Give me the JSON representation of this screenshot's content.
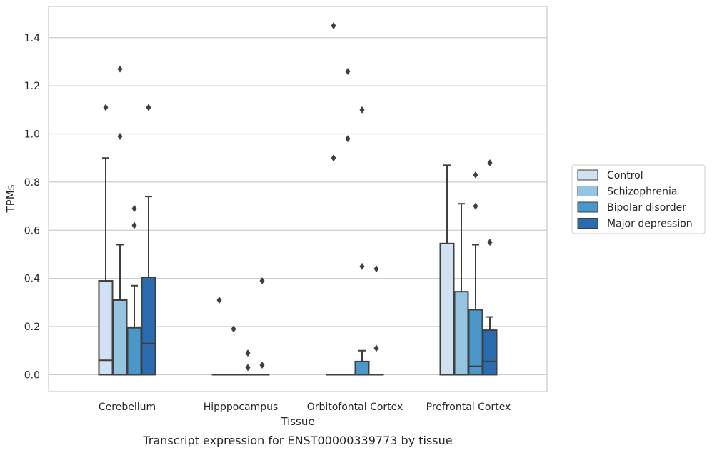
{
  "chart_data": {
    "type": "box",
    "categories": [
      "Cerebellum",
      "Hipppocampus",
      "Orbitofontal Cortex",
      "Prefrontal Cortex"
    ],
    "xlabel": "Tissue",
    "ylabel": "TPMs",
    "caption": "Transcript expression for ENST00000339773 by tissue",
    "ylim": [
      -0.07,
      1.53
    ],
    "yticks": [
      0.0,
      0.2,
      0.4,
      0.6,
      0.8,
      1.0,
      1.2,
      1.4
    ],
    "ytick_labels": [
      "0.0",
      "0.2",
      "0.4",
      "0.6",
      "0.8",
      "1.0",
      "1.2",
      "1.4"
    ],
    "grid": "horizontal",
    "legend_position": "right",
    "series": [
      {
        "name": "Control",
        "color": "#d0e1f2",
        "boxes": [
          {
            "min": 0.0,
            "q1": 0.0,
            "median": 0.06,
            "q3": 0.39,
            "max": 0.9,
            "outliers": [
              1.11
            ]
          },
          {
            "min": 0.0,
            "q1": 0.0,
            "median": 0.0,
            "q3": 0.0,
            "max": 0.0,
            "outliers": [
              0.31
            ]
          },
          {
            "min": 0.0,
            "q1": 0.0,
            "median": 0.0,
            "q3": 0.0,
            "max": 0.0,
            "outliers": [
              1.45,
              0.9
            ]
          },
          {
            "min": 0.0,
            "q1": 0.0,
            "median": 0.0,
            "q3": 0.545,
            "max": 0.87,
            "outliers": []
          }
        ]
      },
      {
        "name": "Schizophrenia",
        "color": "#94c4df",
        "boxes": [
          {
            "min": 0.0,
            "q1": 0.0,
            "median": 0.0,
            "q3": 0.31,
            "max": 0.54,
            "outliers": [
              1.27,
              0.99
            ]
          },
          {
            "min": 0.0,
            "q1": 0.0,
            "median": 0.0,
            "q3": 0.0,
            "max": 0.0,
            "outliers": [
              0.19
            ]
          },
          {
            "min": 0.0,
            "q1": 0.0,
            "median": 0.0,
            "q3": 0.0,
            "max": 0.0,
            "outliers": [
              1.26,
              0.98
            ]
          },
          {
            "min": 0.0,
            "q1": 0.0,
            "median": 0.0,
            "q3": 0.345,
            "max": 0.71,
            "outliers": []
          }
        ]
      },
      {
        "name": "Bipolar disorder",
        "color": "#4a98c9",
        "boxes": [
          {
            "min": 0.0,
            "q1": 0.0,
            "median": 0.0,
            "q3": 0.195,
            "max": 0.37,
            "outliers": [
              0.69,
              0.62
            ]
          },
          {
            "min": 0.0,
            "q1": 0.0,
            "median": 0.0,
            "q3": 0.0,
            "max": 0.0,
            "outliers": [
              0.09,
              0.03
            ]
          },
          {
            "min": 0.0,
            "q1": 0.0,
            "median": 0.0,
            "q3": 0.055,
            "max": 0.1,
            "outliers": [
              1.1,
              0.45
            ]
          },
          {
            "min": 0.0,
            "q1": 0.0,
            "median": 0.035,
            "q3": 0.27,
            "max": 0.54,
            "outliers": [
              0.83,
              0.7
            ]
          }
        ]
      },
      {
        "name": "Major depression",
        "color": "#2a6cb0",
        "boxes": [
          {
            "min": 0.0,
            "q1": 0.0,
            "median": 0.13,
            "q3": 0.405,
            "max": 0.74,
            "outliers": [
              1.11
            ]
          },
          {
            "min": 0.0,
            "q1": 0.0,
            "median": 0.0,
            "q3": 0.0,
            "max": 0.0,
            "outliers": [
              0.39,
              0.04
            ]
          },
          {
            "min": 0.0,
            "q1": 0.0,
            "median": 0.0,
            "q3": 0.0,
            "max": 0.0,
            "outliers": [
              0.44,
              0.11
            ]
          },
          {
            "min": 0.0,
            "q1": 0.0,
            "median": 0.055,
            "q3": 0.185,
            "max": 0.24,
            "outliers": [
              0.88,
              0.55
            ]
          }
        ]
      }
    ]
  }
}
